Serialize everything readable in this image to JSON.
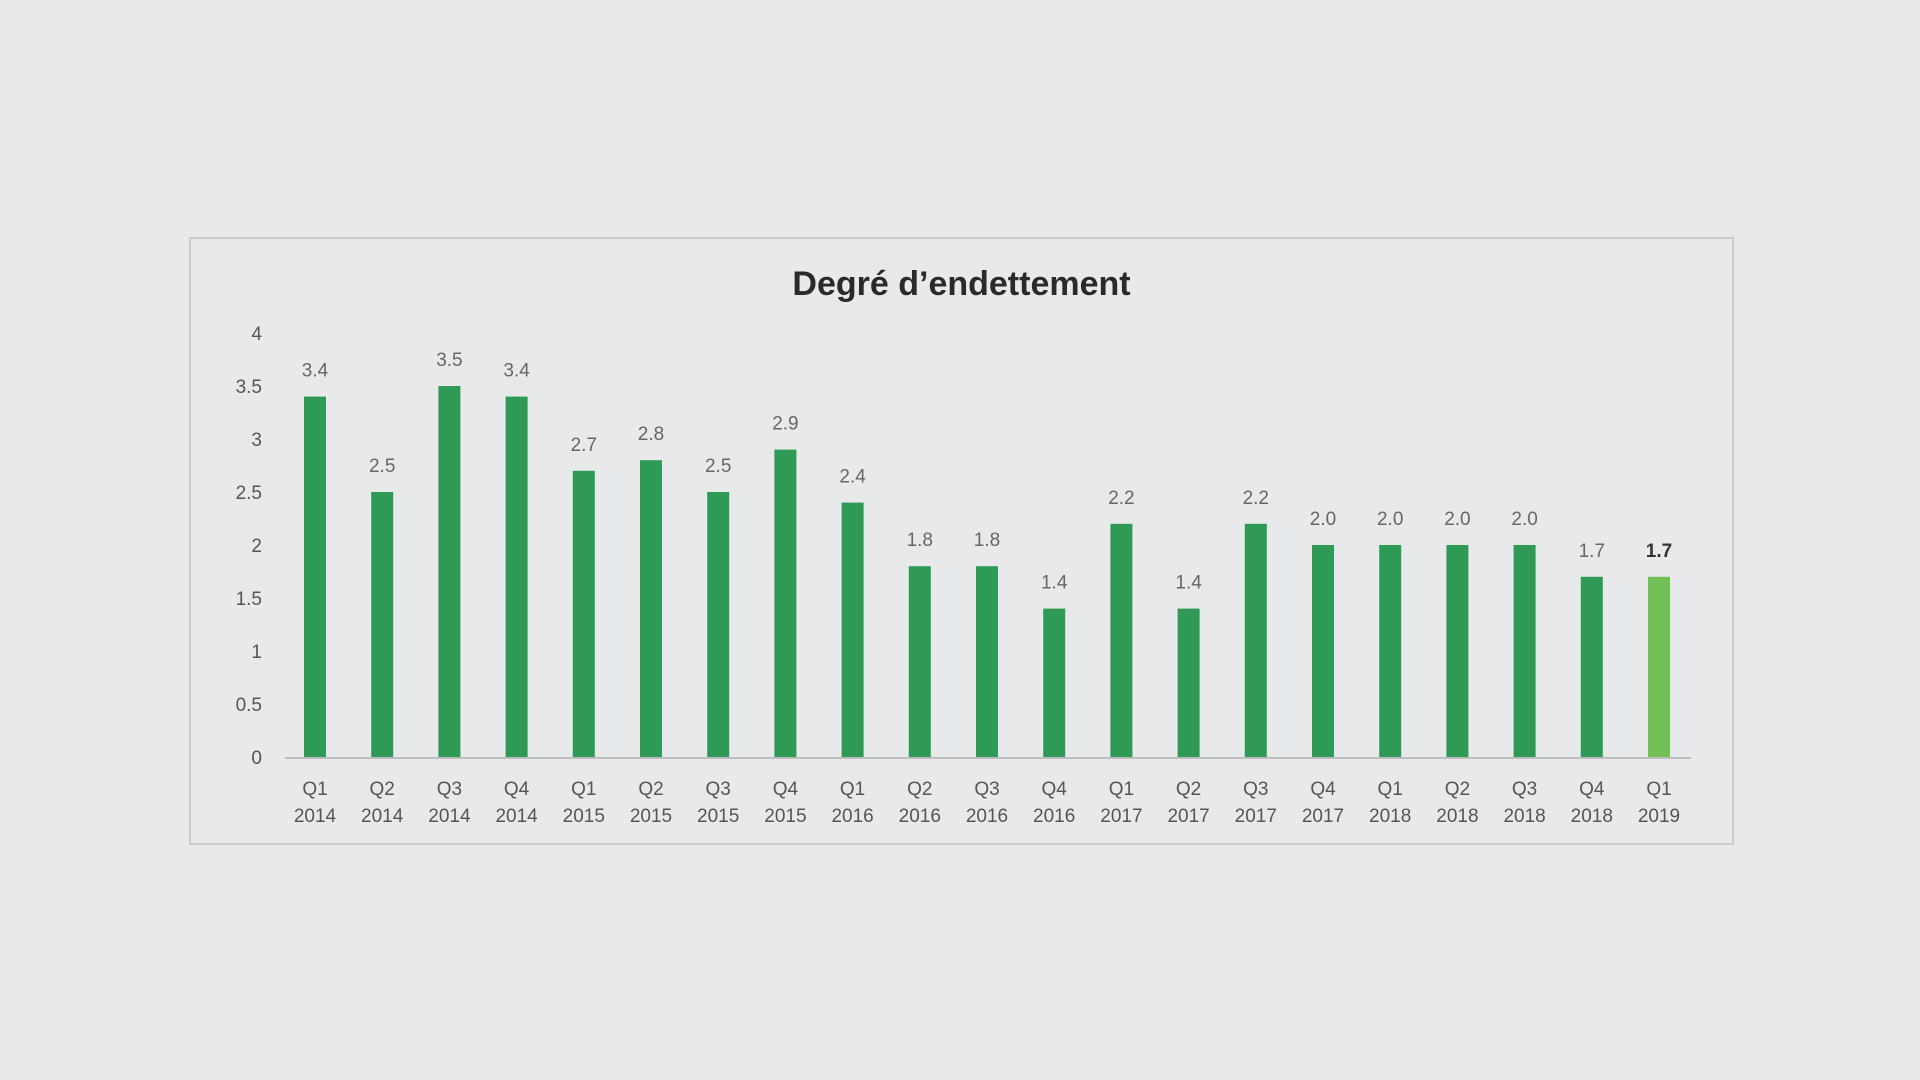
{
  "chart_data": {
    "type": "bar",
    "title": "Degré d’endettement",
    "categories": [
      [
        "Q1",
        "2014"
      ],
      [
        "Q2",
        "2014"
      ],
      [
        "Q3",
        "2014"
      ],
      [
        "Q4",
        "2014"
      ],
      [
        "Q1",
        "2015"
      ],
      [
        "Q2",
        "2015"
      ],
      [
        "Q3",
        "2015"
      ],
      [
        "Q4",
        "2015"
      ],
      [
        "Q1",
        "2016"
      ],
      [
        "Q2",
        "2016"
      ],
      [
        "Q3",
        "2016"
      ],
      [
        "Q4",
        "2016"
      ],
      [
        "Q1",
        "2017"
      ],
      [
        "Q2",
        "2017"
      ],
      [
        "Q3",
        "2017"
      ],
      [
        "Q4",
        "2017"
      ],
      [
        "Q1",
        "2018"
      ],
      [
        "Q2",
        "2018"
      ],
      [
        "Q3",
        "2018"
      ],
      [
        "Q4",
        "2018"
      ],
      [
        "Q1",
        "2019"
      ]
    ],
    "values": [
      3.4,
      2.5,
      3.5,
      3.4,
      2.7,
      2.8,
      2.5,
      2.9,
      2.4,
      1.8,
      1.8,
      1.4,
      2.2,
      1.4,
      2.2,
      2.0,
      2.0,
      2.0,
      2.0,
      1.7,
      1.7
    ],
    "value_labels": [
      "3.4",
      "2.5",
      "3.5",
      "3.4",
      "2.7",
      "2.8",
      "2.5",
      "2.9",
      "2.4",
      "1.8",
      "1.8",
      "1.4",
      "2.2",
      "1.4",
      "2.2",
      "2.0",
      "2.0",
      "2.0",
      "2.0",
      "1.7",
      "1.7"
    ],
    "ylim": [
      0,
      4
    ],
    "yticks": [
      0,
      0.5,
      1,
      1.5,
      2,
      2.5,
      3,
      3.5,
      4
    ],
    "ytick_labels": [
      "0",
      "0.5",
      "1",
      "1.5",
      "2",
      "2.5",
      "3",
      "3.5",
      "4"
    ],
    "grid": false,
    "bar_color": "#2e9a55",
    "highlight_index": 20,
    "highlight_color": "#72bf55"
  }
}
